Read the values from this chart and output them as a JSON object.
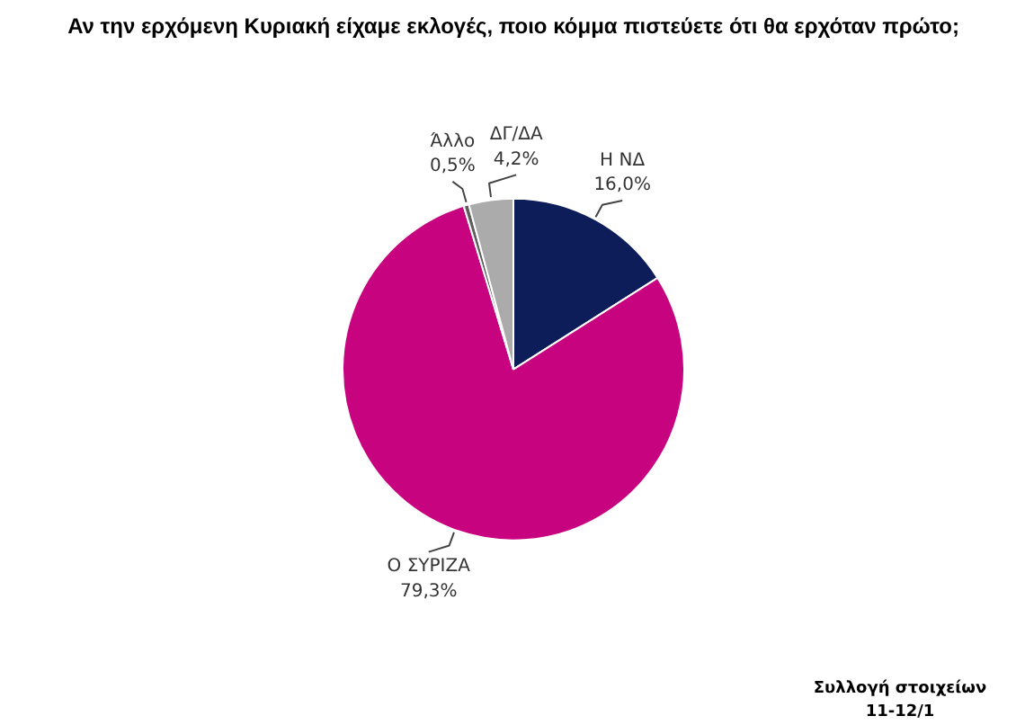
{
  "chart_data": {
    "type": "pie",
    "title": "Αν την ερχόμενη Κυριακή είχαμε εκλογές, ποιο κόμμα πιστεύετε ότι θα ερχόταν πρώτο;",
    "categories": [
      "Η ΝΔ",
      "Ο ΣΥΡΙΖΑ",
      "Άλλο",
      "ΔΓ/ΔΑ"
    ],
    "values": [
      16.0,
      79.3,
      0.5,
      4.2
    ],
    "colors": [
      "#0d1d5a",
      "#c8037f",
      "#5e5e5e",
      "#ababab"
    ],
    "value_labels": [
      "16,0%",
      "79,3%",
      "0,5%",
      "4,2%"
    ],
    "annotations": [
      "Συλλογή στοιχείων\n11-12/1"
    ]
  }
}
